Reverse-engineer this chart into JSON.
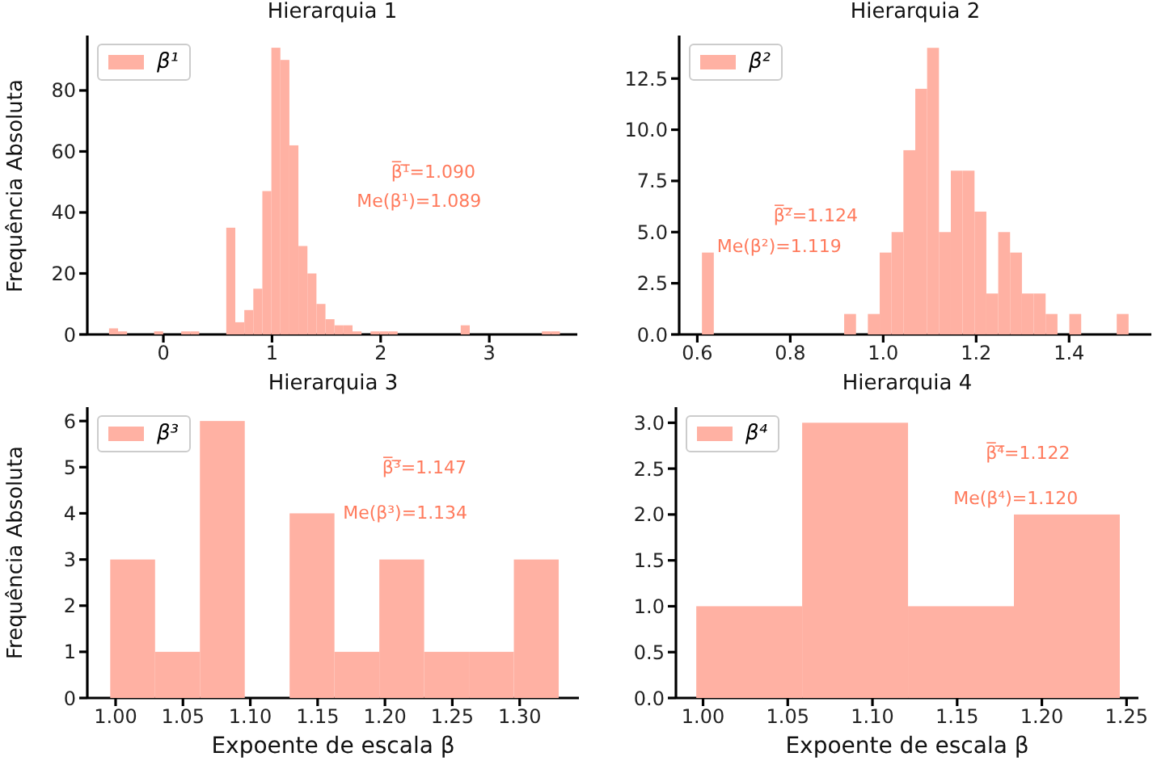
{
  "chart_data": [
    {
      "type": "histogram",
      "title": "Hierarquia 1",
      "ylabel": "Frequência Absoluta",
      "legend": "top left",
      "bins": [
        -0.5,
        -0.417,
        -0.334,
        -0.251,
        -0.168,
        -0.085,
        -0.002,
        0.081,
        0.164,
        0.247,
        0.33,
        0.413,
        0.496,
        0.579,
        0.662,
        0.745,
        0.828,
        0.911,
        0.994,
        1.077,
        1.16,
        1.243,
        1.326,
        1.409,
        1.492,
        1.575,
        1.658,
        1.741,
        1.824,
        1.907,
        1.99,
        2.073,
        2.156,
        2.239,
        2.322,
        2.405,
        2.488,
        2.571,
        2.654,
        2.737,
        2.82,
        2.903,
        2.986,
        3.069,
        3.152,
        3.235,
        3.318,
        3.401,
        3.484,
        3.567,
        3.65
      ],
      "series": [
        {
          "name": "β¹",
          "color": "#ffb1a3",
          "values": [
            2,
            1,
            0,
            0,
            0,
            1,
            0,
            0,
            1,
            1,
            0,
            0,
            0,
            35,
            4,
            8,
            15,
            47,
            94,
            90,
            62,
            29,
            20,
            10,
            5,
            3,
            3,
            1,
            0,
            1,
            1,
            1,
            0,
            0,
            0,
            0,
            0,
            0,
            0,
            3,
            0,
            0,
            0,
            0,
            0,
            0,
            0,
            0,
            1,
            1
          ]
        }
      ],
      "xlim": [
        -0.7,
        3.81
      ],
      "ylim": [
        0,
        98
      ],
      "xticks": [
        0,
        1,
        2,
        3
      ],
      "yticks": [
        0,
        20,
        40,
        60,
        80
      ],
      "annotations": [
        "β̅¹̅=1.090",
        "Me(β¹)=1.089"
      ]
    },
    {
      "type": "histogram",
      "title": "Hierarquia 2",
      "legend": "top left",
      "bins": [
        0.61,
        0.6355,
        0.661,
        0.6865,
        0.712,
        0.7375,
        0.763,
        0.7885,
        0.814,
        0.8395,
        0.865,
        0.8905,
        0.916,
        0.9415,
        0.967,
        0.9925,
        1.018,
        1.0435,
        1.069,
        1.0945,
        1.12,
        1.1455,
        1.171,
        1.1965,
        1.222,
        1.2475,
        1.273,
        1.2985,
        1.324,
        1.3495,
        1.375,
        1.4005,
        1.426,
        1.4515,
        1.477,
        1.5025,
        1.528
      ],
      "series": [
        {
          "name": "β²",
          "color": "#ffb1a3",
          "values": [
            4,
            0,
            0,
            0,
            0,
            0,
            0,
            0,
            0,
            0,
            0,
            0,
            1,
            0,
            1,
            4,
            5,
            9,
            12,
            14,
            5,
            8,
            8,
            6,
            2,
            5,
            4,
            2,
            2,
            1,
            0,
            1,
            0,
            0,
            0,
            1
          ]
        }
      ],
      "xlim": [
        0.561,
        1.577
      ],
      "ylim": [
        0,
        14.6
      ],
      "xticks": [
        0.6,
        0.8,
        {
          "value": 1,
          "label": "1.0"
        },
        1.2,
        1.4
      ],
      "yticks": [
        {
          "value": 0,
          "label": "0.0"
        },
        2.5,
        {
          "value": 5,
          "label": "5.0"
        },
        7.5,
        {
          "value": 10,
          "label": "10.0"
        },
        12.5
      ],
      "annotations": [
        "β̅²̅=1.124",
        "Me(β²)=1.119"
      ]
    },
    {
      "type": "histogram",
      "title": "Hierarquia 3",
      "xlabel": "Expoente de escala β",
      "ylabel": "Frequência Absoluta",
      "legend": "top left",
      "bins": [
        0.996,
        1.0293,
        1.0626,
        1.0959,
        1.1292,
        1.1625,
        1.1958,
        1.2291,
        1.2624,
        1.2957,
        1.329
      ],
      "series": [
        {
          "name": "β³",
          "color": "#ffb1a3",
          "values": [
            3,
            1,
            6,
            0,
            4,
            1,
            3,
            1,
            1,
            3
          ]
        }
      ],
      "xlim": [
        0.979,
        1.344
      ],
      "ylim": [
        0,
        6.3
      ],
      "xticks": [
        {
          "value": 1,
          "label": "1.00"
        },
        1.05,
        {
          "value": 1.1,
          "label": "1.10"
        },
        1.15,
        {
          "value": 1.2,
          "label": "1.20"
        },
        1.25,
        {
          "value": 1.3,
          "label": "1.30"
        }
      ],
      "yticks": [
        0,
        1,
        2,
        3,
        4,
        5,
        6
      ],
      "annotations": [
        "β̅³̅=1.147",
        "Me(β³)=1.134"
      ]
    },
    {
      "type": "histogram",
      "title": "Hierarquia 4",
      "xlabel": "Expoente de escala β",
      "legend": "top left",
      "bins": [
        0.996,
        1.0585,
        1.121,
        1.1835,
        1.246
      ],
      "series": [
        {
          "name": "β⁴",
          "color": "#ffb1a3",
          "values": [
            1,
            3,
            1,
            2
          ]
        }
      ],
      "xlim": [
        0.984,
        1.257
      ],
      "ylim": [
        0,
        3.17
      ],
      "xticks": [
        {
          "value": 1,
          "label": "1.00"
        },
        1.05,
        {
          "value": 1.1,
          "label": "1.10"
        },
        1.15,
        {
          "value": 1.2,
          "label": "1.20"
        },
        1.25
      ],
      "yticks": [
        {
          "value": 0,
          "label": "0.0"
        },
        0.5,
        {
          "value": 1,
          "label": "1.0"
        },
        1.5,
        {
          "value": 2,
          "label": "2.0"
        },
        2.5,
        {
          "value": 3,
          "label": "3.0"
        }
      ],
      "annotations": [
        "β̅⁴̅=1.122",
        "Me(β⁴)=1.120"
      ]
    }
  ]
}
